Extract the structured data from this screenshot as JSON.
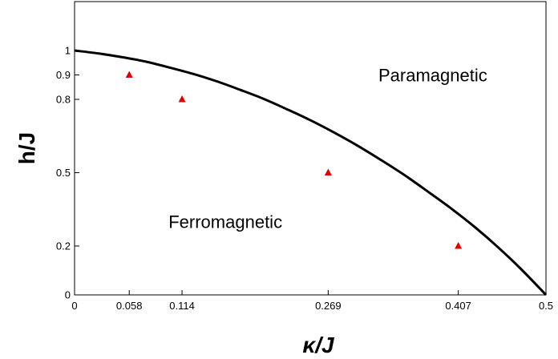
{
  "chart_data": {
    "type": "line",
    "xlabel": "κ/J",
    "ylabel": "h/J",
    "xlim": [
      0,
      0.5
    ],
    "ylim": [
      0,
      1.2
    ],
    "x_ticks": [
      0,
      0.058,
      0.114,
      0.269,
      0.407,
      0.5
    ],
    "x_tick_labels": [
      "0",
      "0.058",
      "0.114",
      "0.269",
      "0.407",
      "0.5"
    ],
    "y_ticks": [
      0,
      0.2,
      0.5,
      0.8,
      0.9,
      1
    ],
    "y_tick_labels": [
      "0",
      "0.2",
      "0.5",
      "0.8",
      "0.9",
      "1"
    ],
    "grid": false,
    "legend": "none",
    "series": [
      {
        "type": "line",
        "color": "#000000",
        "x": [
          0,
          0.025,
          0.05,
          0.075,
          0.1,
          0.125,
          0.15,
          0.175,
          0.2,
          0.225,
          0.25,
          0.275,
          0.3,
          0.325,
          0.35,
          0.375,
          0.4,
          0.425,
          0.45,
          0.475,
          0.5
        ],
        "y": [
          1.0,
          0.988,
          0.973,
          0.955,
          0.931,
          0.905,
          0.875,
          0.84,
          0.803,
          0.76,
          0.715,
          0.665,
          0.611,
          0.552,
          0.49,
          0.422,
          0.352,
          0.276,
          0.192,
          0.1,
          0.0
        ]
      },
      {
        "type": "scatter",
        "marker": "triangle",
        "color": "#e00000",
        "x": [
          0.058,
          0.114,
          0.269,
          0.407
        ],
        "y": [
          0.9,
          0.8,
          0.5,
          0.2
        ]
      }
    ],
    "annotations": [
      {
        "text": "Paramagnetic",
        "x": 0.38,
        "y": 0.9
      },
      {
        "text": "Ferromagnetic",
        "x": 0.16,
        "y": 0.3
      }
    ]
  }
}
